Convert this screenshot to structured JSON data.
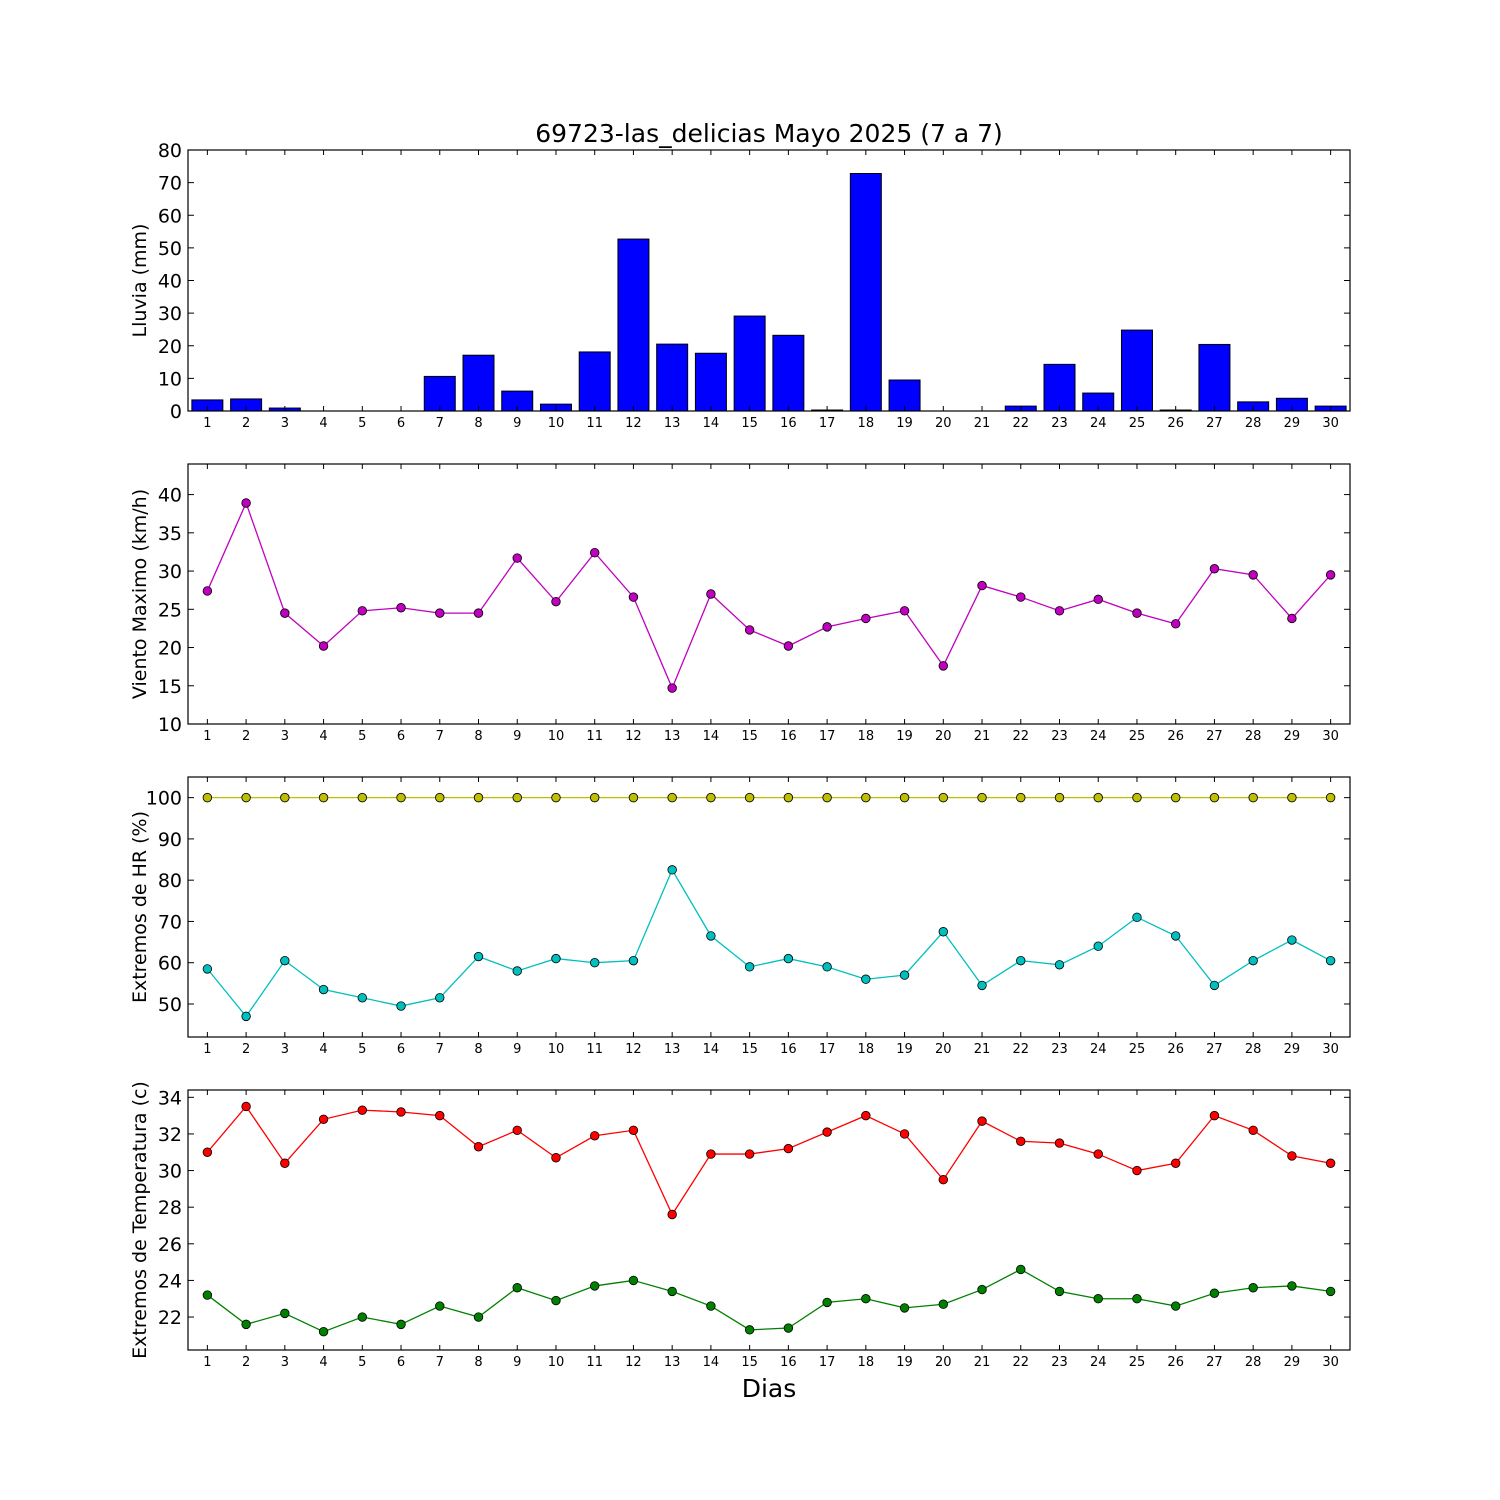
{
  "title": "69723-las_delicias Mayo 2025  (7 a 7)",
  "xlabel": "Dias",
  "colors": {
    "rain": "#0000ff",
    "wind": "#bf00bf",
    "hr_max": "#bfbf00",
    "hr_min": "#00bfbf",
    "t_max": "#ff0000",
    "t_min": "#008000"
  },
  "chart_data": [
    {
      "type": "bar",
      "ylabel": "Lluvia (mm)",
      "ylim": [
        0,
        80
      ],
      "yticks": [
        0,
        10,
        20,
        30,
        40,
        50,
        60,
        70,
        80
      ],
      "categories": [
        1,
        2,
        3,
        4,
        5,
        6,
        7,
        8,
        9,
        10,
        11,
        12,
        13,
        14,
        15,
        16,
        17,
        18,
        19,
        20,
        21,
        22,
        23,
        24,
        25,
        26,
        27,
        28,
        29,
        30
      ],
      "series": [
        {
          "values": [
            3.4,
            3.7,
            0.9,
            0,
            0,
            0,
            10.6,
            17.1,
            6.1,
            2.1,
            18.1,
            52.7,
            20.5,
            17.7,
            29.1,
            23.2,
            0.3,
            72.8,
            9.5,
            0,
            0,
            1.5,
            14.3,
            5.5,
            24.8,
            0.3,
            20.4,
            2.8,
            3.9,
            1.5
          ]
        }
      ]
    },
    {
      "type": "line",
      "ylabel": "Viento Maximo (km/h)",
      "ylim": [
        10,
        44
      ],
      "yticks": [
        10,
        15,
        20,
        25,
        30,
        35,
        40
      ],
      "categories": [
        1,
        2,
        3,
        4,
        5,
        6,
        7,
        8,
        9,
        10,
        11,
        12,
        13,
        14,
        15,
        16,
        17,
        18,
        19,
        20,
        21,
        22,
        23,
        24,
        25,
        26,
        27,
        28,
        29,
        30
      ],
      "series": [
        {
          "values": [
            27.4,
            38.9,
            24.5,
            20.2,
            24.8,
            25.2,
            24.5,
            24.5,
            31.7,
            26.0,
            32.4,
            26.6,
            14.7,
            27.0,
            22.3,
            20.2,
            22.7,
            23.8,
            24.8,
            17.6,
            28.1,
            26.6,
            24.8,
            26.3,
            24.5,
            23.1,
            30.3,
            29.5,
            23.8,
            29.5
          ]
        }
      ]
    },
    {
      "type": "line",
      "ylabel": "Extremos de HR (%)",
      "ylim": [
        42,
        105
      ],
      "yticks": [
        50,
        60,
        70,
        80,
        90,
        100
      ],
      "categories": [
        1,
        2,
        3,
        4,
        5,
        6,
        7,
        8,
        9,
        10,
        11,
        12,
        13,
        14,
        15,
        16,
        17,
        18,
        19,
        20,
        21,
        22,
        23,
        24,
        25,
        26,
        27,
        28,
        29,
        30
      ],
      "series": [
        {
          "values": [
            100,
            100,
            100,
            100,
            100,
            100,
            100,
            100,
            100,
            100,
            100,
            100,
            100,
            100,
            100,
            100,
            100,
            100,
            100,
            100,
            100,
            100,
            100,
            100,
            100,
            100,
            100,
            100,
            100,
            100
          ]
        },
        {
          "values": [
            58.5,
            47.0,
            60.5,
            53.5,
            51.5,
            49.5,
            51.5,
            61.5,
            58.0,
            61.0,
            60.0,
            60.5,
            82.5,
            66.5,
            59.0,
            61.0,
            59.0,
            56.0,
            57.0,
            67.5,
            54.5,
            60.5,
            59.5,
            64.0,
            71.0,
            66.5,
            54.5,
            60.5,
            65.5,
            60.5
          ]
        }
      ]
    },
    {
      "type": "line",
      "ylabel": "Extremos de Temperatura (c)",
      "ylim": [
        20.2,
        34.4
      ],
      "yticks": [
        22,
        24,
        26,
        28,
        30,
        32,
        34
      ],
      "categories": [
        1,
        2,
        3,
        4,
        5,
        6,
        7,
        8,
        9,
        10,
        11,
        12,
        13,
        14,
        15,
        16,
        17,
        18,
        19,
        20,
        21,
        22,
        23,
        24,
        25,
        26,
        27,
        28,
        29,
        30
      ],
      "series": [
        {
          "values": [
            31.0,
            33.5,
            30.4,
            32.8,
            33.3,
            33.2,
            33.0,
            31.3,
            32.2,
            30.7,
            31.9,
            32.2,
            27.6,
            30.9,
            30.9,
            31.2,
            32.1,
            33.0,
            32.0,
            29.5,
            32.7,
            31.6,
            31.5,
            30.9,
            30.0,
            30.4,
            33.0,
            32.2,
            30.8,
            30.4
          ]
        },
        {
          "values": [
            23.2,
            21.6,
            22.2,
            21.2,
            22.0,
            21.6,
            22.6,
            22.0,
            23.6,
            22.9,
            23.7,
            24.0,
            23.4,
            22.6,
            21.3,
            21.4,
            22.8,
            23.0,
            22.5,
            22.7,
            23.5,
            24.6,
            23.4,
            23.0,
            23.0,
            22.6,
            23.3,
            23.6,
            23.7,
            23.4
          ]
        }
      ]
    }
  ]
}
